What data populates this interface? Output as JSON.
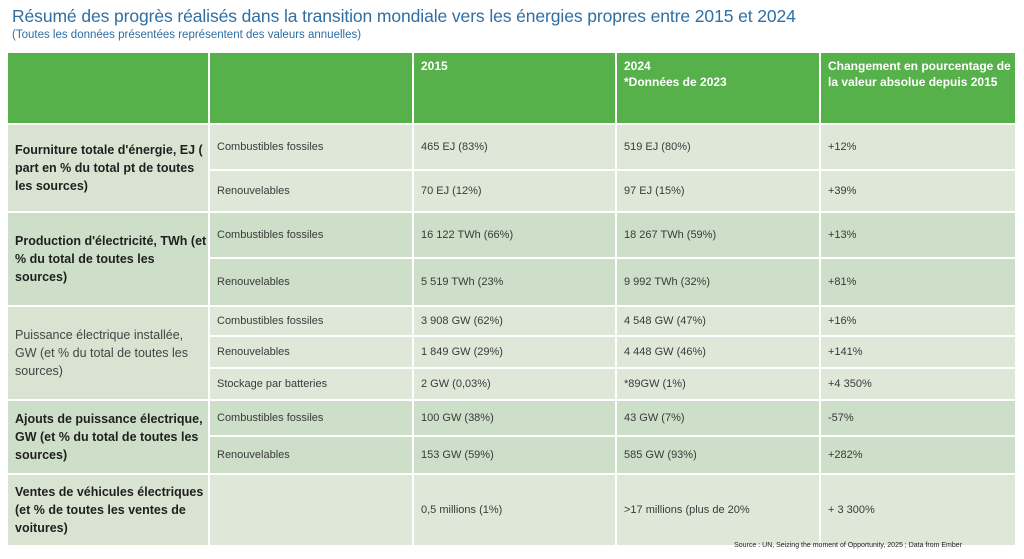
{
  "title": "Résumé des progrès réalisés dans la transition mondiale vers les énergies propres entre 2015 et 2024",
  "subtitle": "(Toutes les données présentées représentent des valeurs annuelles)",
  "header": {
    "col1": "",
    "col2": "",
    "col3": "2015",
    "col4_line1": "2024",
    "col4_line2": "*Données de 2023",
    "col5": "Changement en pourcentage de la valeur absolue depuis 2015"
  },
  "rows": {
    "r0": {
      "group": "Fourniture totale d'énergie, EJ ( part en % du total pt de toutes les sources)",
      "type": "Combustibles fossiles",
      "v2015": "465 EJ (83%)",
      "v2024": "519 EJ (80%)",
      "change": "+12%"
    },
    "r1": {
      "type": "Renouvelables",
      "v2015": "70 EJ (12%)",
      "v2024": "97 EJ (15%)",
      "change": "+39%"
    },
    "r2": {
      "group": "Production d'électricité, TWh (et % du total de toutes les sources)",
      "type": "Combustibles fossiles",
      "v2015": "16 122 TWh (66%)",
      "v2024": "18 267 TWh (59%)",
      "change": "+13%"
    },
    "r3": {
      "type": "Renouvelables",
      "v2015": "5 519 TWh (23%",
      "v2024": "9 992 TWh (32%)",
      "change": "+81%"
    },
    "r4": {
      "group": "Puissance électrique installée, GW (et % du total de toutes les sources)",
      "type": "Combustibles fossiles",
      "v2015": "3 908 GW (62%)",
      "v2024": "4 548 GW (47%)",
      "change": "+16%"
    },
    "r5": {
      "type": "Renouvelables",
      "v2015": "1 849 GW (29%)",
      "v2024": "4 448 GW (46%)",
      "change": "+141%"
    },
    "r6": {
      "type": "Stockage par batteries",
      "v2015": "2 GW (0,03%)",
      "v2024": "*89GW (1%)",
      "change": "+4 350%"
    },
    "r7": {
      "group": "Ajouts de puissance électrique, GW (et % du total de toutes les sources)",
      "type": "Combustibles fossiles",
      "v2015": "100 GW (38%)",
      "v2024": "43 GW (7%)",
      "change": "-57%"
    },
    "r8": {
      "type": "Renouvelables",
      "v2015": "153 GW (59%)",
      "v2024": "585 GW (93%)",
      "change": "+282%"
    },
    "r9": {
      "group": "Ventes de véhicules électriques (et % de toutes les ventes de voitures)",
      "type": "",
      "v2015": "0,5 millions (1%)",
      "v2024": ">17 millions (plus de 20%",
      "change": "+ 3 300%"
    }
  },
  "source": "Source : UN, Seizing the moment of Opportunity, 2025 ; Data from Ember",
  "colors": {
    "header_green": "#57b14a",
    "title_blue": "#2e6ea3",
    "row_light": "#dfe8d8",
    "row_dark": "#cddfc8"
  }
}
